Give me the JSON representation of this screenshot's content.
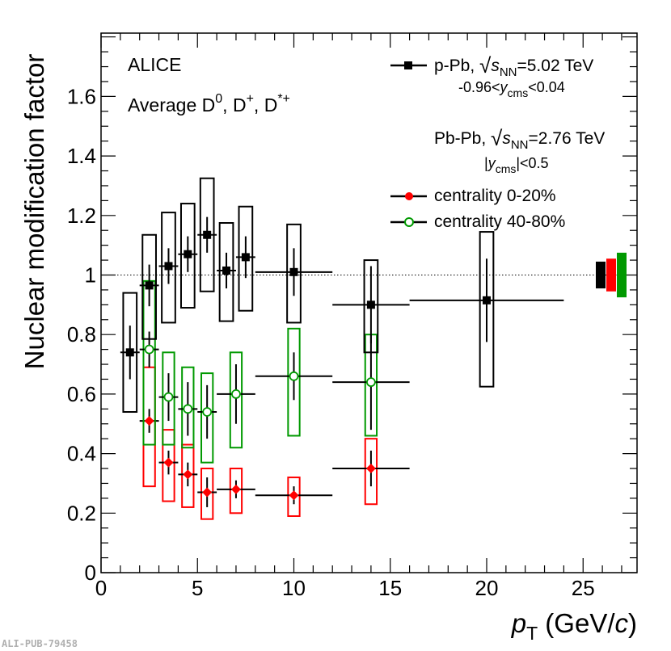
{
  "chart_data": {
    "type": "scatter",
    "title": "",
    "xlabel": "p_T (GeV/c)",
    "xlabel_main": "p",
    "xlabel_sub": "T",
    "xlabel_unit": " (GeV/",
    "xlabel_c": "c",
    "xlabel_close": ")",
    "ylabel": "Nuclear modification factor",
    "xlim": [
      0,
      28
    ],
    "ylim": [
      0,
      1.8
    ],
    "x_ticks": [
      0,
      5,
      10,
      15,
      20,
      25
    ],
    "y_ticks": [
      0,
      0.2,
      0.4,
      0.6,
      0.8,
      1,
      1.2,
      1.4,
      1.6
    ],
    "y_tick_labels": [
      "0",
      "0.2",
      "0.4",
      "0.6",
      "0.8",
      "1",
      "1.2",
      "1.4",
      "1.6"
    ],
    "reference_line": 1.0,
    "annotations": {
      "experiment": "ALICE",
      "average_prefix": "Average D",
      "average_species": [
        "0",
        "+",
        "*+"
      ],
      "legend_ppb": "p-Pb, √s",
      "legend_ppb_energy": "=5.02 TeV",
      "legend_ppb_rapidity": "-0.96<y",
      "legend_ppb_rapidity_end": "<0.04",
      "legend_pbpb_header": "Pb-Pb, √s",
      "legend_pbpb_energy": "=2.76 TeV",
      "legend_pbpb_rapidity": "|y",
      "legend_pbpb_rapidity_end": "|<0.5",
      "sub_nn": "NN",
      "sub_cms": "cms",
      "sqrt_symbol": "√",
      "s_letter": "s",
      "y_letter": "y",
      "dzero_super": "0",
      "dplus_super": "+",
      "dstar_super": "*+",
      "comma": ", ",
      "d_letter": "D"
    },
    "publication_id": "ALI-PUB-79458",
    "series": [
      {
        "name": "p-Pb",
        "color": "#000000",
        "marker": "square",
        "points": [
          {
            "x": 1.5,
            "xlo": 1,
            "xhi": 2,
            "y": 0.74,
            "stat": 0.09,
            "sys_lo": 0.2,
            "sys_hi": 0.2
          },
          {
            "x": 2.5,
            "xlo": 2,
            "xhi": 3,
            "y": 0.965,
            "stat": 0.07,
            "sys_lo": 0.18,
            "sys_hi": 0.17
          },
          {
            "x": 3.5,
            "xlo": 3,
            "xhi": 4,
            "y": 1.03,
            "stat": 0.06,
            "sys_lo": 0.19,
            "sys_hi": 0.18
          },
          {
            "x": 4.5,
            "xlo": 4,
            "xhi": 5,
            "y": 1.07,
            "stat": 0.06,
            "sys_lo": 0.18,
            "sys_hi": 0.17
          },
          {
            "x": 5.5,
            "xlo": 5,
            "xhi": 6,
            "y": 1.135,
            "stat": 0.06,
            "sys_lo": 0.19,
            "sys_hi": 0.19
          },
          {
            "x": 6.5,
            "xlo": 6,
            "xhi": 7,
            "y": 1.015,
            "stat": 0.06,
            "sys_lo": 0.17,
            "sys_hi": 0.16
          },
          {
            "x": 7.5,
            "xlo": 7,
            "xhi": 8,
            "y": 1.06,
            "stat": 0.07,
            "sys_lo": 0.18,
            "sys_hi": 0.17
          },
          {
            "x": 10,
            "xlo": 8,
            "xhi": 12,
            "y": 1.01,
            "stat": 0.08,
            "sys_lo": 0.17,
            "sys_hi": 0.16
          },
          {
            "x": 14,
            "xlo": 12,
            "xhi": 16,
            "y": 0.9,
            "stat": 0.13,
            "sys_lo": 0.16,
            "sys_hi": 0.15
          },
          {
            "x": 20,
            "xlo": 16,
            "xhi": 24,
            "y": 0.915,
            "stat": 0.14,
            "sys_lo": 0.29,
            "sys_hi": 0.23
          }
        ]
      },
      {
        "name": "centrality 0-20%",
        "color": "#ff0000",
        "marker": "diamond",
        "points": [
          {
            "x": 2.5,
            "xlo": 2,
            "xhi": 3,
            "y": 0.51,
            "stat": 0.04,
            "sys_lo": 0.22,
            "sys_hi": 0.18
          },
          {
            "x": 3.5,
            "xlo": 3,
            "xhi": 4,
            "y": 0.37,
            "stat": 0.04,
            "sys_lo": 0.13,
            "sys_hi": 0.11
          },
          {
            "x": 4.5,
            "xlo": 4,
            "xhi": 5,
            "y": 0.33,
            "stat": 0.04,
            "sys_lo": 0.11,
            "sys_hi": 0.1
          },
          {
            "x": 5.5,
            "xlo": 5,
            "xhi": 6,
            "y": 0.27,
            "stat": 0.05,
            "sys_lo": 0.09,
            "sys_hi": 0.08
          },
          {
            "x": 7,
            "xlo": 6,
            "xhi": 8,
            "y": 0.28,
            "stat": 0.03,
            "sys_lo": 0.08,
            "sys_hi": 0.07
          },
          {
            "x": 10,
            "xlo": 8,
            "xhi": 12,
            "y": 0.26,
            "stat": 0.03,
            "sys_lo": 0.07,
            "sys_hi": 0.06
          },
          {
            "x": 14,
            "xlo": 12,
            "xhi": 16,
            "y": 0.35,
            "stat": 0.06,
            "sys_lo": 0.12,
            "sys_hi": 0.1
          }
        ]
      },
      {
        "name": "centrality 40-80%",
        "color": "#009900",
        "marker": "open-circle",
        "points": [
          {
            "x": 2.5,
            "xlo": 2,
            "xhi": 3,
            "y": 0.75,
            "stat": 0.06,
            "sys_lo": 0.32,
            "sys_hi": 0.23
          },
          {
            "x": 3.5,
            "xlo": 3,
            "xhi": 4,
            "y": 0.59,
            "stat": 0.08,
            "sys_lo": 0.16,
            "sys_hi": 0.15
          },
          {
            "x": 4.5,
            "xlo": 4,
            "xhi": 5,
            "y": 0.55,
            "stat": 0.09,
            "sys_lo": 0.13,
            "sys_hi": 0.14
          },
          {
            "x": 5.5,
            "xlo": 5,
            "xhi": 6,
            "y": 0.54,
            "stat": 0.09,
            "sys_lo": 0.17,
            "sys_hi": 0.13
          },
          {
            "x": 7,
            "xlo": 6,
            "xhi": 8,
            "y": 0.6,
            "stat": 0.1,
            "sys_lo": 0.18,
            "sys_hi": 0.14
          },
          {
            "x": 10,
            "xlo": 8,
            "xhi": 12,
            "y": 0.66,
            "stat": 0.08,
            "sys_lo": 0.2,
            "sys_hi": 0.16
          },
          {
            "x": 14,
            "xlo": 12,
            "xhi": 16,
            "y": 0.64,
            "stat": 0.16,
            "sys_lo": 0.18,
            "sys_hi": 0.16
          }
        ]
      }
    ],
    "normalization_boxes": [
      {
        "series": "p-Pb",
        "color": "#000000",
        "lo": 0.955,
        "hi": 1.045
      },
      {
        "series": "centrality 0-20%",
        "color": "#ff0000",
        "lo": 0.945,
        "hi": 1.055
      },
      {
        "series": "centrality 40-80%",
        "color": "#009900",
        "lo": 0.925,
        "hi": 1.075
      }
    ]
  }
}
